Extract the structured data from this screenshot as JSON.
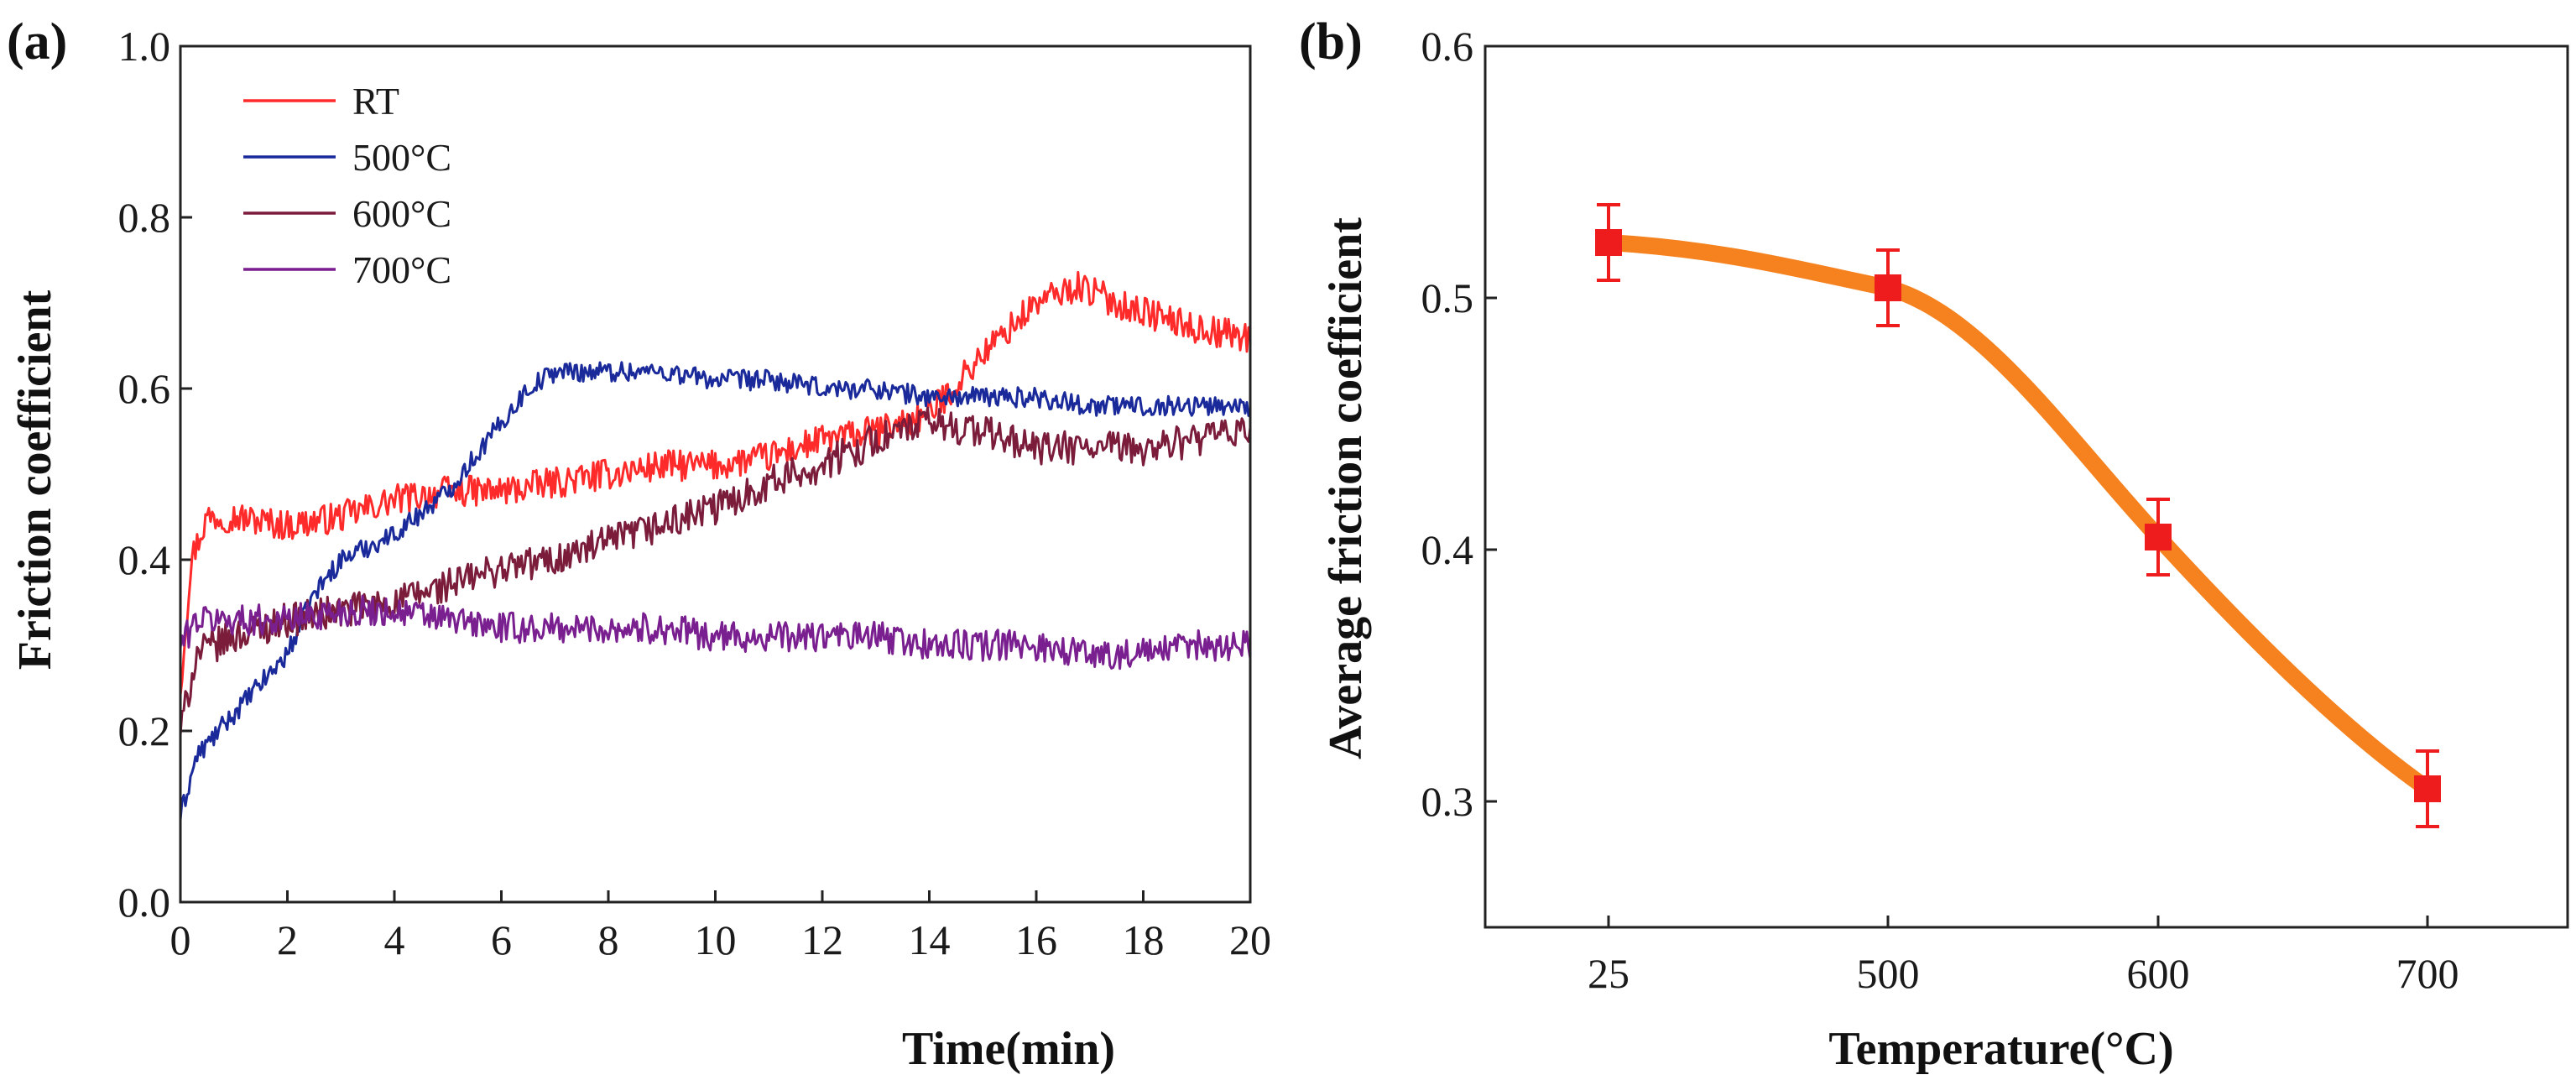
{
  "chart_data": [
    {
      "panel_label": "(a)",
      "type": "line",
      "xlabel": "Time(min)",
      "ylabel": "Friction coefficient",
      "xlim": [
        0,
        20
      ],
      "ylim": [
        0.0,
        1.0
      ],
      "x_ticks": [
        "0",
        "2",
        "4",
        "6",
        "8",
        "10",
        "12",
        "14",
        "16",
        "18",
        "20"
      ],
      "y_ticks": [
        "0.0",
        "0.2",
        "0.4",
        "0.6",
        "0.8",
        "1.0"
      ],
      "legend_position": "top-left",
      "series": [
        {
          "name": "RT",
          "color": "#ff2a2a",
          "noise": 0.018,
          "x": [
            0,
            0.2,
            0.5,
            1,
            2,
            3,
            4,
            5,
            6,
            7,
            8,
            9,
            10,
            11,
            12,
            13,
            14,
            15,
            16,
            16.8,
            17.5,
            18,
            19,
            20
          ],
          "y": [
            0.25,
            0.4,
            0.45,
            0.45,
            0.44,
            0.45,
            0.47,
            0.48,
            0.48,
            0.49,
            0.5,
            0.51,
            0.51,
            0.52,
            0.54,
            0.55,
            0.57,
            0.64,
            0.7,
            0.72,
            0.7,
            0.69,
            0.67,
            0.66
          ]
        },
        {
          "name": "500°C",
          "color": "#1a2a9a",
          "noise": 0.012,
          "x": [
            0,
            0.3,
            1,
            2,
            2.5,
            3,
            4,
            5,
            6,
            6.5,
            7,
            8,
            9,
            10,
            11,
            12,
            13,
            14,
            15,
            16,
            17,
            18,
            19,
            20
          ],
          "y": [
            0.1,
            0.17,
            0.22,
            0.29,
            0.36,
            0.4,
            0.43,
            0.48,
            0.56,
            0.6,
            0.62,
            0.62,
            0.62,
            0.61,
            0.61,
            0.6,
            0.6,
            0.59,
            0.59,
            0.59,
            0.58,
            0.58,
            0.58,
            0.58
          ]
        },
        {
          "name": "600°C",
          "color": "#7a1c3a",
          "noise": 0.02,
          "x": [
            0,
            0.3,
            1,
            2,
            3,
            4,
            5,
            6,
            7,
            8,
            9,
            10,
            11,
            12,
            13,
            14,
            15,
            16,
            17,
            18,
            19,
            20
          ],
          "y": [
            0.2,
            0.29,
            0.31,
            0.33,
            0.34,
            0.35,
            0.37,
            0.39,
            0.4,
            0.42,
            0.44,
            0.46,
            0.49,
            0.51,
            0.54,
            0.56,
            0.55,
            0.53,
            0.53,
            0.53,
            0.54,
            0.55
          ]
        },
        {
          "name": "700°C",
          "color": "#7a1f8f",
          "noise": 0.018,
          "x": [
            0,
            0.3,
            1,
            2,
            3,
            4,
            5,
            6,
            7,
            8,
            9,
            10,
            11,
            12,
            13,
            14,
            15,
            16,
            17,
            18,
            19,
            20
          ],
          "y": [
            0.3,
            0.33,
            0.33,
            0.33,
            0.34,
            0.34,
            0.33,
            0.32,
            0.32,
            0.32,
            0.32,
            0.31,
            0.31,
            0.31,
            0.31,
            0.3,
            0.3,
            0.3,
            0.29,
            0.29,
            0.3,
            0.3
          ]
        }
      ]
    },
    {
      "panel_label": "(b)",
      "type": "line",
      "xlabel": "Temperature(°C)",
      "ylabel": "Average friction coefficient",
      "ylim": [
        0.25,
        0.6
      ],
      "categories": [
        "25",
        "500",
        "600",
        "700"
      ],
      "y_ticks": [
        "0.3",
        "0.4",
        "0.5",
        "0.6"
      ],
      "series": [
        {
          "name": "Average friction coefficient",
          "values": [
            0.522,
            0.504,
            0.405,
            0.305
          ],
          "errors": [
            0.015,
            0.015,
            0.015,
            0.015
          ],
          "marker_color": "#ee1c1c",
          "line_color": "#f5821f"
        }
      ]
    }
  ]
}
